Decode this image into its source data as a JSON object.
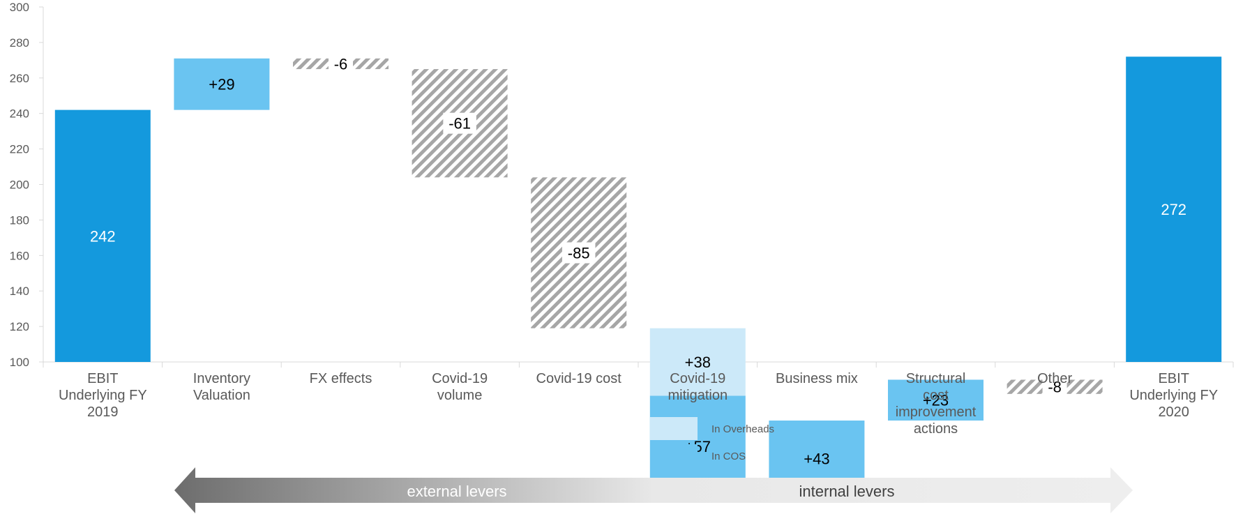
{
  "chart_data": {
    "type": "bar",
    "subtype": "waterfall",
    "ylim": [
      100,
      300
    ],
    "yticks": [
      100,
      120,
      140,
      160,
      180,
      200,
      220,
      240,
      260,
      280,
      300
    ],
    "grid": false,
    "steps": [
      {
        "category": "EBIT Underlying FY 2019",
        "kind": "total",
        "value": 242,
        "label": "242"
      },
      {
        "category": "Inventory Valuation",
        "kind": "increase",
        "value": 29,
        "label": "+29"
      },
      {
        "category": "FX effects",
        "kind": "decrease",
        "value": -6,
        "label": "-6"
      },
      {
        "category": "Covid-19 volume",
        "kind": "decrease",
        "value": -61,
        "label": "-61"
      },
      {
        "category": "Covid-19 cost",
        "kind": "decrease",
        "value": -85,
        "label": "-85"
      },
      {
        "category": "Covid-19 mitigation",
        "kind": "increase",
        "parts": [
          {
            "series": "In COS",
            "value": 57,
            "label": "+57"
          },
          {
            "series": "In Overheads",
            "value": 38,
            "label": "+38"
          }
        ]
      },
      {
        "category": "Business mix",
        "kind": "increase",
        "value": 43,
        "label": "+43"
      },
      {
        "category": "Structural cost improvement actions",
        "kind": "increase",
        "value": 23,
        "label": "+23"
      },
      {
        "category": "Other",
        "kind": "decrease",
        "value": -8,
        "label": "-8"
      },
      {
        "category": "EBIT Underlying FY 2020",
        "kind": "total",
        "value": 272,
        "label": "272"
      }
    ],
    "legend": {
      "placement": "bottom-center",
      "items": [
        {
          "name": "In Overheads",
          "color": "#cce9f9"
        },
        {
          "name": "In COS",
          "color": "#6ac4f1"
        }
      ]
    },
    "colors": {
      "total": "#1499dd",
      "increase": "#6ac4f1",
      "overheads": "#cce9f9",
      "decrease_hatch": "#a6a6a6",
      "total_label": "#ffffff",
      "label": "#000000",
      "axis": "#d9d9d9"
    }
  },
  "levers": {
    "left": "external levers",
    "right": "internal levers"
  }
}
